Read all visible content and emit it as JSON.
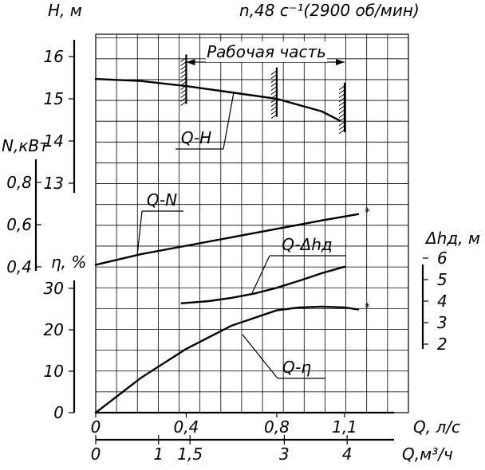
{
  "chart_data": {
    "type": "line",
    "speed_note": "n,48 с⁻¹(2900 об/мин)",
    "working_range_label": "Рабочая часть",
    "working_range": [
      0.4,
      1.1
    ],
    "working_marks": [
      0.4,
      0.8,
      1.1
    ],
    "flow_axis": {
      "label": "Q, л/с",
      "range": [
        0,
        1.25
      ],
      "ticks": [
        {
          "v": 0,
          "label": "0"
        },
        {
          "v": 0.4,
          "label": "0,4"
        },
        {
          "v": 0.8,
          "label": "0,8"
        },
        {
          "v": 1.1,
          "label": "1,1"
        }
      ]
    },
    "flow_axis_m3h": {
      "label": "Q,м³/ч",
      "ticks": [
        {
          "v": 0,
          "label": "0"
        },
        {
          "v": 1,
          "label": "1"
        },
        {
          "v": 1.5,
          "label": "1,5"
        },
        {
          "v": 3,
          "label": "3"
        },
        {
          "v": 4,
          "label": "4"
        }
      ]
    },
    "head_axis": {
      "label": "H, м",
      "range": [
        12,
        16.5
      ],
      "ticks": [
        {
          "v": 13,
          "label": "13"
        },
        {
          "v": 14,
          "label": "14"
        },
        {
          "v": 15,
          "label": "15"
        },
        {
          "v": 16,
          "label": "16"
        }
      ]
    },
    "power_axis": {
      "label": "N,кВт",
      "range": [
        0.3,
        0.9
      ],
      "ticks": [
        {
          "v": 0.4,
          "label": "0,4"
        },
        {
          "v": 0.6,
          "label": "0,6"
        },
        {
          "v": 0.8,
          "label": "0,8"
        }
      ]
    },
    "eff_axis": {
      "label": "η, %",
      "range": [
        0,
        35
      ],
      "ticks": [
        {
          "v": 0,
          "label": "0"
        },
        {
          "v": 10,
          "label": "10"
        },
        {
          "v": 20,
          "label": "20"
        },
        {
          "v": 30,
          "label": "30"
        }
      ]
    },
    "npsh_axis": {
      "label": "Δhд, м",
      "range": [
        1.7,
        6.4
      ],
      "ticks": [
        {
          "v": 2,
          "label": "2"
        },
        {
          "v": 3,
          "label": "3"
        },
        {
          "v": 4,
          "label": "4"
        },
        {
          "v": 5,
          "label": "5"
        },
        {
          "v": 6,
          "label": "6"
        }
      ]
    },
    "grid": true,
    "series": [
      {
        "name": "Q-H",
        "axis": "head",
        "points": [
          [
            0,
            15.47
          ],
          [
            0.2,
            15.42
          ],
          [
            0.4,
            15.3
          ],
          [
            0.6,
            15.15
          ],
          [
            0.8,
            15.0
          ],
          [
            1.0,
            14.7
          ],
          [
            1.08,
            14.48
          ]
        ]
      },
      {
        "name": "Q-N",
        "axis": "power",
        "points": [
          [
            0,
            0.41
          ],
          [
            0.2,
            0.46
          ],
          [
            0.4,
            0.5
          ],
          [
            0.6,
            0.54
          ],
          [
            0.8,
            0.58
          ],
          [
            1.0,
            0.62
          ],
          [
            1.16,
            0.65
          ]
        ],
        "end_mark": "*"
      },
      {
        "name": "Q-Δhд",
        "axis": "npsh",
        "points": [
          [
            0.38,
            3.9
          ],
          [
            0.5,
            4.0
          ],
          [
            0.6,
            4.15
          ],
          [
            0.7,
            4.35
          ],
          [
            0.8,
            4.62
          ],
          [
            0.9,
            4.95
          ],
          [
            1.0,
            5.3
          ],
          [
            1.1,
            5.6
          ]
        ]
      },
      {
        "name": "Q-η",
        "axis": "eff",
        "points": [
          [
            0,
            0
          ],
          [
            0.1,
            4.2
          ],
          [
            0.2,
            8.4
          ],
          [
            0.4,
            15.4
          ],
          [
            0.6,
            21
          ],
          [
            0.8,
            24.7
          ],
          [
            0.9,
            25.4
          ],
          [
            1.0,
            25.6
          ],
          [
            1.1,
            25.4
          ],
          [
            1.16,
            24.9
          ]
        ],
        "end_mark": "*"
      }
    ]
  }
}
